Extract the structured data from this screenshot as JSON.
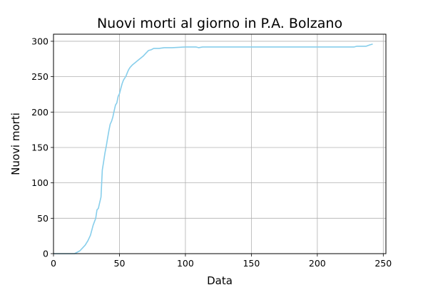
{
  "chart_data": {
    "type": "line",
    "title": "Nuovi morti al giorno in P.A. Bolzano",
    "xlabel": "Data",
    "ylabel": "Nuovi morti",
    "xlim": [
      0,
      252
    ],
    "ylim": [
      0,
      310
    ],
    "xticks": [
      0,
      50,
      100,
      150,
      200,
      250
    ],
    "yticks": [
      0,
      50,
      100,
      150,
      200,
      250,
      300
    ],
    "grid": true,
    "legend": "none",
    "series": [
      {
        "color": "#87ceeb",
        "points": [
          [
            0,
            0
          ],
          [
            16,
            0
          ],
          [
            18,
            2
          ],
          [
            20,
            4
          ],
          [
            22,
            8
          ],
          [
            24,
            12
          ],
          [
            26,
            18
          ],
          [
            28,
            26
          ],
          [
            30,
            40
          ],
          [
            32,
            50
          ],
          [
            33,
            62
          ],
          [
            34,
            64
          ],
          [
            35,
            72
          ],
          [
            36,
            80
          ],
          [
            37,
            118
          ],
          [
            38,
            130
          ],
          [
            39,
            142
          ],
          [
            40,
            152
          ],
          [
            41,
            163
          ],
          [
            42,
            174
          ],
          [
            43,
            183
          ],
          [
            44,
            187
          ],
          [
            45,
            193
          ],
          [
            46,
            202
          ],
          [
            47,
            210
          ],
          [
            48,
            213
          ],
          [
            49,
            222
          ],
          [
            50,
            226
          ],
          [
            51,
            233
          ],
          [
            52,
            240
          ],
          [
            53,
            245
          ],
          [
            54,
            248
          ],
          [
            55,
            251
          ],
          [
            56,
            256
          ],
          [
            57,
            260
          ],
          [
            58,
            263
          ],
          [
            60,
            267
          ],
          [
            62,
            270
          ],
          [
            64,
            273
          ],
          [
            66,
            276
          ],
          [
            68,
            279
          ],
          [
            70,
            283
          ],
          [
            72,
            287
          ],
          [
            74,
            288
          ],
          [
            76,
            290
          ],
          [
            80,
            290
          ],
          [
            84,
            291
          ],
          [
            90,
            291
          ],
          [
            100,
            292
          ],
          [
            108,
            292
          ],
          [
            110,
            291
          ],
          [
            113,
            292
          ],
          [
            120,
            292
          ],
          [
            150,
            292
          ],
          [
            200,
            292
          ],
          [
            228,
            292
          ],
          [
            230,
            293
          ],
          [
            237,
            293
          ],
          [
            240,
            295
          ],
          [
            242,
            296
          ]
        ]
      }
    ]
  }
}
